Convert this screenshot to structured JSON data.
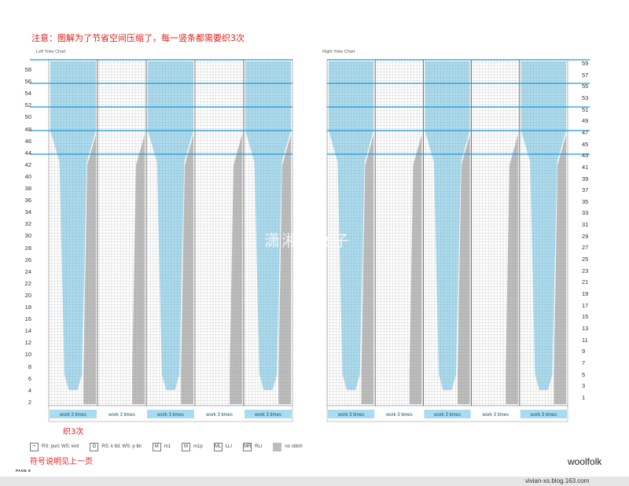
{
  "note": "注意：图解为了节省空间压缩了，每一竖条都需要织3次",
  "left_chart": {
    "title": "Left Yoke Chart",
    "row_labels": [
      "58",
      "56",
      "54",
      "52",
      "50",
      "48",
      "46",
      "44",
      "42",
      "40",
      "38",
      "36",
      "34",
      "32",
      "30",
      "28",
      "26",
      "24",
      "22",
      "20",
      "18",
      "16",
      "14",
      "12",
      "10",
      "8",
      "6",
      "4",
      "2"
    ],
    "repeat_labels": [
      "work 3 times",
      "work 3 times",
      "work 3 times",
      "work 3 times",
      "work 3 times"
    ]
  },
  "right_chart": {
    "title": "Right Yoke Chart",
    "row_labels": [
      "59",
      "57",
      "55",
      "53",
      "51",
      "49",
      "47",
      "45",
      "43",
      "41",
      "39",
      "37",
      "35",
      "33",
      "31",
      "29",
      "27",
      "25",
      "23",
      "21",
      "19",
      "17",
      "15",
      "13",
      "11",
      "9",
      "7",
      "5",
      "3",
      "1"
    ],
    "repeat_labels": [
      "work 3 times",
      "work 3 times",
      "work 3 times",
      "work 3 times",
      "work 3 times"
    ]
  },
  "annotation_knit3": "织3次",
  "legend": [
    {
      "icon": "•",
      "label": "RS: purl; WS: knit"
    },
    {
      "icon": "Ω",
      "label": "RS: k tbl; WS: p tbl"
    },
    {
      "icon": "M",
      "label": "m1"
    },
    {
      "icon": "M",
      "label": "m1p"
    },
    {
      "icon": "ML",
      "label": "LLI"
    },
    {
      "icon": "MR",
      "label": "RLI"
    },
    {
      "icon": "",
      "label": "no stitch"
    }
  ],
  "symbol_note": "符号说明见上一页",
  "page_label": "PAGE 8",
  "brand": "woolfolk",
  "blog": "vivian-xs.blog.163.com",
  "watermark": "潇湘小女子",
  "colors": {
    "blue": "#a9dcf0",
    "gray": "#bdbdbd",
    "line": "#1e9ad6",
    "red": "#e0201a"
  },
  "chart_data": {
    "type": "table",
    "charts": [
      {
        "title": "Left Yoke Chart",
        "rows": 58,
        "repeat_panels": 5,
        "repeat_count": 3
      },
      {
        "title": "Right Yoke Chart",
        "rows": 59,
        "repeat_panels": 5,
        "repeat_count": 3
      }
    ]
  }
}
